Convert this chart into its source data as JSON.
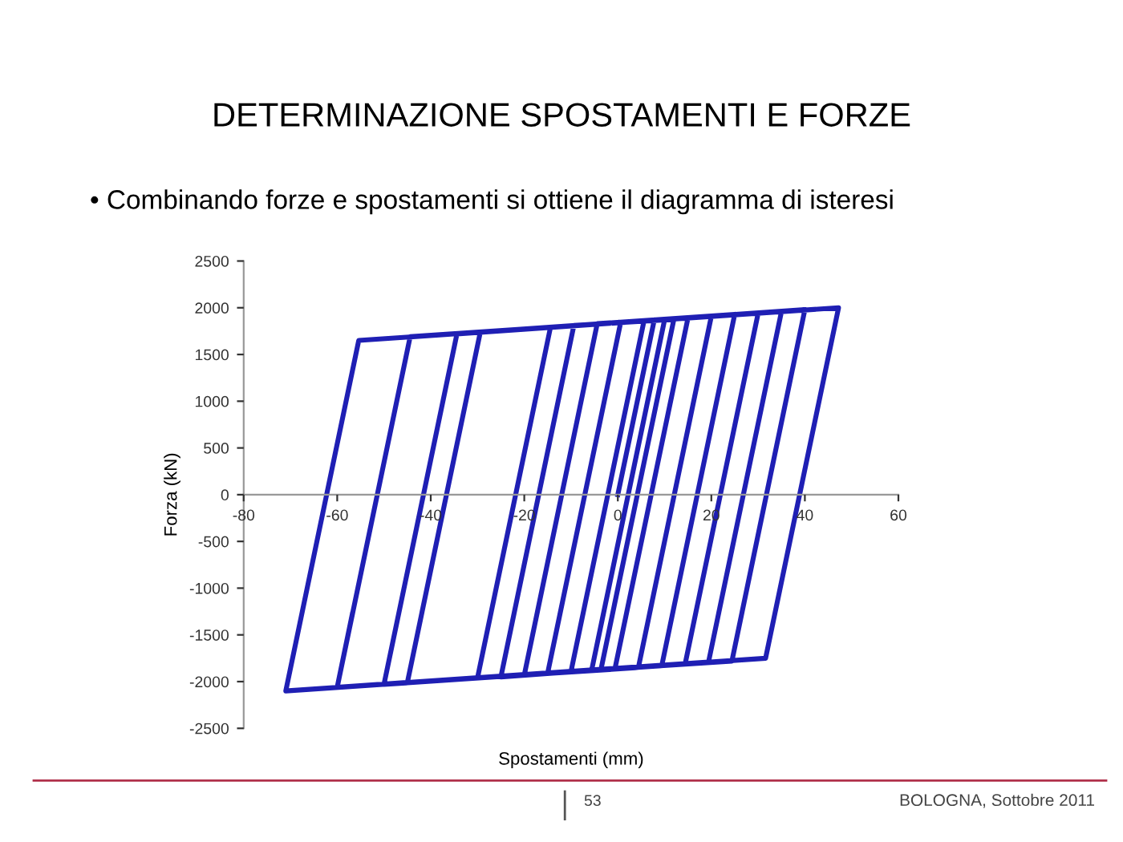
{
  "chart_data": {
    "type": "line",
    "title": "DETERMINAZIONE SPOSTAMENTI E FORZE",
    "subtitle": "• Combinando forze e spostamenti si ottiene il diagramma di isteresi",
    "xlabel": "Spostamenti (mm)",
    "ylabel": "Forza (kN)",
    "series": [
      {
        "color": "#1f1fb4",
        "x": [
          0,
          7.8,
          12,
          -3.6,
          -10,
          5.6,
          20,
          4.4,
          -20,
          -4.4,
          30,
          14.4,
          -30,
          -14.4,
          47.2,
          31.6,
          -71,
          -55.4,
          40,
          24.4,
          -45,
          -29.4,
          25,
          9.4,
          -50,
          -34.4,
          35,
          19.4,
          -60,
          -56.7,
          -60,
          -44.4,
          15,
          -0.6,
          -25,
          -9.4,
          10,
          -5.6,
          -15,
          0.6
        ],
        "values": [
          0,
          1870,
          1880,
          -1870,
          -1890,
          1860,
          1910,
          -1850,
          -1930,
          1830,
          1940,
          -1810,
          -1960,
          1790,
          2000,
          -1750,
          -2100,
          1650,
          1980,
          -1780,
          -2010,
          1740,
          1930,
          -1830,
          -2030,
          1720,
          1960,
          -1790,
          -2060,
          -1260,
          -2060,
          1690,
          1890,
          -1860,
          -1950,
          1810,
          1870,
          -1880,
          -1910,
          1840
        ]
      }
    ],
    "xlim": [
      -80,
      60
    ],
    "xticks": [
      -80,
      -60,
      -40,
      -20,
      0,
      20,
      40,
      60
    ],
    "ylim": [
      -2500,
      2500
    ],
    "yticks": [
      -2500,
      -2000,
      -1500,
      -1000,
      -500,
      0,
      500,
      1000,
      1500,
      2000,
      2500
    ],
    "grid": false,
    "marker": "none",
    "line_style": "solid",
    "legend": false,
    "annotations": [
      "53",
      "BOLOGNA, Sottobre 2011"
    ]
  }
}
